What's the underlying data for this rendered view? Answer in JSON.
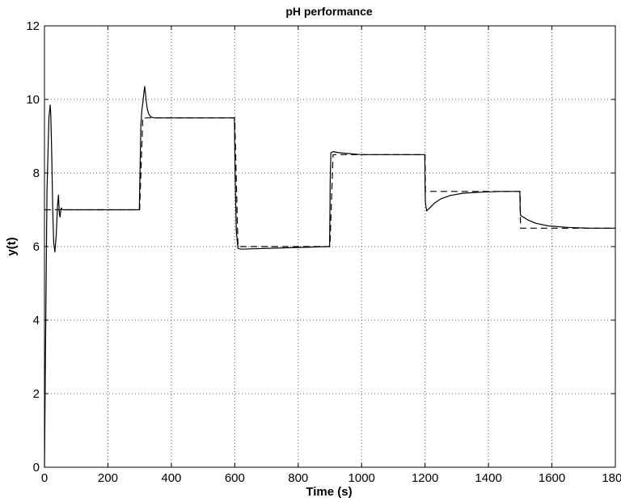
{
  "chart_data": {
    "type": "line",
    "title": "pH performance",
    "xlabel": "Time (s)",
    "ylabel": "y(t)",
    "xlim": [
      0,
      1800
    ],
    "ylim": [
      0,
      12
    ],
    "xticks": [
      0,
      200,
      400,
      600,
      800,
      1000,
      1200,
      1400,
      1600,
      1800
    ],
    "yticks": [
      0,
      2,
      4,
      6,
      8,
      10,
      12
    ],
    "grid": true,
    "legend": "none",
    "series": [
      {
        "style": "solid",
        "color": "#000000",
        "x": [
          0,
          3,
          8,
          14,
          18,
          20,
          23,
          26,
          29,
          33,
          37,
          41,
          44,
          47,
          49,
          51,
          53,
          56,
          60,
          70,
          150,
          299,
          301,
          304,
          307,
          310,
          313,
          316,
          318,
          321,
          324,
          328,
          332,
          337,
          345,
          360,
          380,
          450,
          599,
          601,
          605,
          610,
          620,
          899,
          901,
          903,
          910,
          930,
          1000,
          1199,
          1200,
          1201,
          1205,
          1215,
          1230,
          1250,
          1280,
          1320,
          1380,
          1440,
          1499,
          1500,
          1501,
          1504,
          1510,
          1525,
          1550,
          1590,
          1650,
          1720,
          1800
        ],
        "y": [
          0,
          3,
          7.5,
          9.5,
          9.85,
          9.6,
          8.5,
          7.0,
          6.1,
          5.85,
          6.3,
          7.1,
          7.4,
          6.9,
          6.8,
          6.95,
          7.05,
          7.0,
          7.0,
          7.0,
          7.0,
          7.0,
          8.0,
          9.3,
          9.7,
          9.9,
          10.15,
          10.35,
          10.2,
          9.95,
          9.75,
          9.62,
          9.56,
          9.52,
          9.5,
          9.5,
          9.5,
          9.5,
          9.5,
          8.0,
          6.4,
          5.95,
          5.93,
          6.0,
          7.8,
          8.55,
          8.58,
          8.55,
          8.5,
          8.5,
          7.6,
          7.2,
          6.97,
          7.05,
          7.18,
          7.3,
          7.39,
          7.45,
          7.48,
          7.5,
          7.5,
          7.0,
          6.85,
          6.83,
          6.8,
          6.72,
          6.63,
          6.56,
          6.52,
          6.5,
          6.5
        ]
      },
      {
        "style": "dashed",
        "color": "#000000",
        "x": [
          0,
          300,
          310,
          600,
          610,
          900,
          910,
          1200,
          1201,
          1500,
          1501,
          1800
        ],
        "y": [
          7,
          7,
          9.5,
          9.5,
          6,
          6,
          8.5,
          8.5,
          7.5,
          7.5,
          6.5,
          6.5
        ]
      }
    ]
  }
}
